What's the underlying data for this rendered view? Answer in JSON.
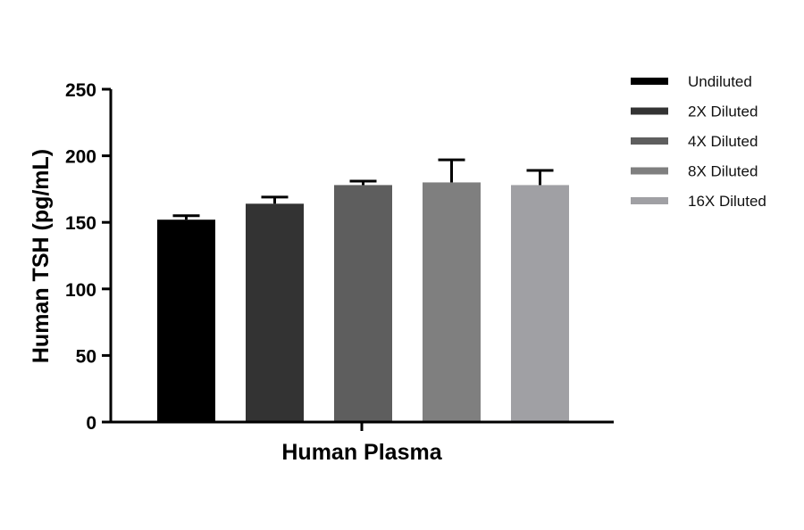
{
  "chart_data": {
    "type": "bar",
    "xlabel": "Human Plasma",
    "ylabel": "Human TSH (pg/mL)",
    "ylim": [
      0,
      250
    ],
    "yticks": [
      "0",
      "50",
      "100",
      "150",
      "200",
      "250"
    ],
    "grid": false,
    "legend_position": "right",
    "series": [
      {
        "name": "Undiluted",
        "value": 152,
        "error": 3,
        "color": "#000000"
      },
      {
        "name": "2X Diluted",
        "value": 164,
        "error": 5,
        "color": "#333333"
      },
      {
        "name": "4X Diluted",
        "value": 178,
        "error": 3,
        "color": "#5e5e5e"
      },
      {
        "name": "8X Diluted",
        "value": 180,
        "error": 17,
        "color": "#7f7f7f"
      },
      {
        "name": "16X Diluted",
        "value": 178,
        "error": 11,
        "color": "#a0a0a4"
      }
    ]
  }
}
